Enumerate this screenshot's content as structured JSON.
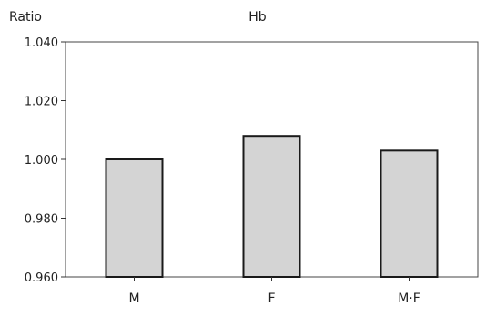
{
  "chart_data": {
    "type": "bar",
    "title": "Hb",
    "ylabel": "Ratio",
    "xlabel": "",
    "categories": [
      "M",
      "F",
      "M·F"
    ],
    "values": [
      1.0,
      1.008,
      1.003
    ],
    "ylim": [
      0.96,
      1.04
    ],
    "yticks": [
      0.96,
      0.98,
      1.0,
      1.02,
      1.04
    ],
    "ytick_labels": [
      "0.960",
      "0.980",
      "1.000",
      "1.020",
      "1.040"
    ],
    "grid": false,
    "legend": "none"
  },
  "colors": {
    "bar_fill": "#d4d4d4",
    "bar_stroke": "#1a1a1a",
    "axis": "#333333",
    "frame": "#444444",
    "background": "#ffffff"
  }
}
